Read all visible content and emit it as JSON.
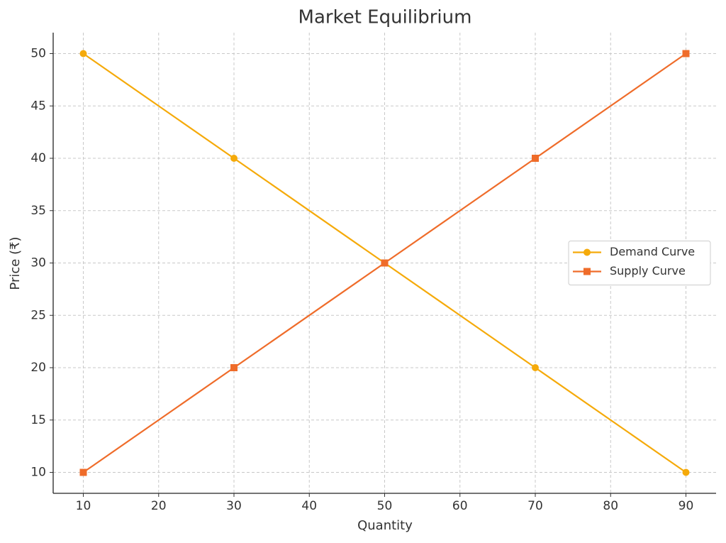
{
  "chart_data": {
    "type": "line",
    "title": "Market Equilibrium",
    "x_label": "Quantity",
    "y_label": "Price (₹)",
    "x": [
      10,
      30,
      50,
      70,
      90
    ],
    "series": [
      {
        "name": "Demand Curve",
        "color": "#f5aa0a",
        "marker": "circle",
        "values": [
          50,
          40,
          30,
          20,
          10
        ]
      },
      {
        "name": "Supply Curve",
        "color": "#ef6c2a",
        "marker": "square",
        "values": [
          10,
          20,
          30,
          40,
          50
        ]
      }
    ],
    "xlim": [
      6,
      94
    ],
    "ylim": [
      8,
      52
    ],
    "xticks": [
      10,
      20,
      30,
      40,
      50,
      60,
      70,
      80,
      90
    ],
    "yticks": [
      10,
      15,
      20,
      25,
      30,
      35,
      40,
      45,
      50
    ],
    "grid": true,
    "legend": "center right"
  }
}
